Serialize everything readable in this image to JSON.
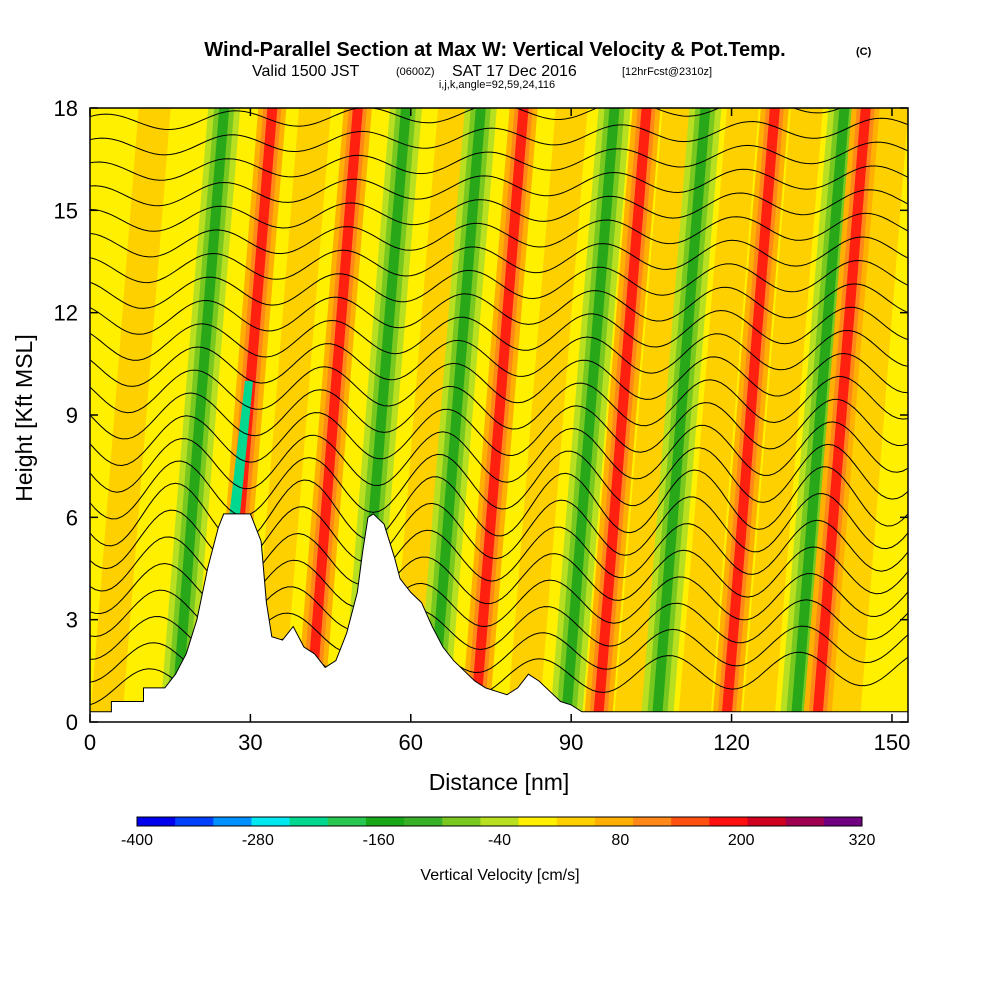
{
  "chart_data": {
    "type": "heatmap",
    "title": "Wind-Parallel Section at Max W: Vertical Velocity & Pot.Temp.",
    "title_suffix": "(C)",
    "subtitle_main": "Valid 1500 JST",
    "subtitle_utc": "(0600Z)",
    "subtitle_date": "SAT 17 Dec 2016",
    "subtitle_fcst": "[12hrFcst@2310z]",
    "subtitle_params": "i,j,k,angle=92,59,24,116",
    "xlabel": "Distance [nm]",
    "ylabel": "Height [Kft MSL]",
    "xlim": [
      0,
      153
    ],
    "ylim": [
      0,
      18
    ],
    "xticks": [
      "0",
      "30",
      "60",
      "90",
      "120",
      "150"
    ],
    "yticks": [
      "0",
      "3",
      "6",
      "9",
      "12",
      "15",
      "18"
    ],
    "colorbar": {
      "label": "Vertical Velocity [cm/s]",
      "ticks": [
        "-400",
        "-280",
        "-160",
        "-40",
        "80",
        "200",
        "320"
      ],
      "min": -400,
      "max": 320,
      "step": 40,
      "colors": [
        "#0000ee",
        "#0040ff",
        "#0090ff",
        "#00e8f0",
        "#00d890",
        "#28c850",
        "#18a818",
        "#38b028",
        "#78c820",
        "#b8e020",
        "#fff000",
        "#ffd000",
        "#ffb000",
        "#ff8818",
        "#ff5010",
        "#ff1010",
        "#d00020",
        "#a00050",
        "#700080"
      ]
    },
    "updraft_bands_x": [
      32,
      48,
      79,
      102,
      126,
      143
    ],
    "downdraft_bands_x": [
      23,
      57,
      71,
      96,
      113,
      139
    ],
    "terrain": [
      [
        0,
        0.3
      ],
      [
        4,
        0.3
      ],
      [
        4,
        0.6
      ],
      [
        10,
        0.6
      ],
      [
        10,
        1.0
      ],
      [
        14,
        1.0
      ],
      [
        16,
        1.4
      ],
      [
        18,
        2.0
      ],
      [
        20,
        3.0
      ],
      [
        22,
        4.5
      ],
      [
        24,
        5.7
      ],
      [
        25,
        6.1
      ],
      [
        30,
        6.1
      ],
      [
        32,
        5.3
      ],
      [
        33,
        3.5
      ],
      [
        34,
        2.5
      ],
      [
        36,
        2.4
      ],
      [
        38,
        2.8
      ],
      [
        40,
        2.2
      ],
      [
        42,
        2.0
      ],
      [
        44,
        1.6
      ],
      [
        46,
        1.8
      ],
      [
        48,
        2.6
      ],
      [
        50,
        3.8
      ],
      [
        51,
        5.0
      ],
      [
        52,
        6.0
      ],
      [
        53,
        6.1
      ],
      [
        55,
        5.8
      ],
      [
        56,
        5.3
      ],
      [
        57,
        4.8
      ],
      [
        58,
        4.2
      ],
      [
        60,
        3.8
      ],
      [
        62,
        3.5
      ],
      [
        64,
        2.8
      ],
      [
        66,
        2.2
      ],
      [
        68,
        1.8
      ],
      [
        70,
        1.5
      ],
      [
        72,
        1.2
      ],
      [
        74,
        1.0
      ],
      [
        76,
        0.9
      ],
      [
        78,
        0.8
      ],
      [
        80,
        1.0
      ],
      [
        82,
        1.4
      ],
      [
        84,
        1.2
      ],
      [
        86,
        0.9
      ],
      [
        88,
        0.6
      ],
      [
        90,
        0.5
      ],
      [
        92,
        0.3
      ],
      [
        153,
        0.3
      ]
    ],
    "theta_contours_count": 24
  }
}
